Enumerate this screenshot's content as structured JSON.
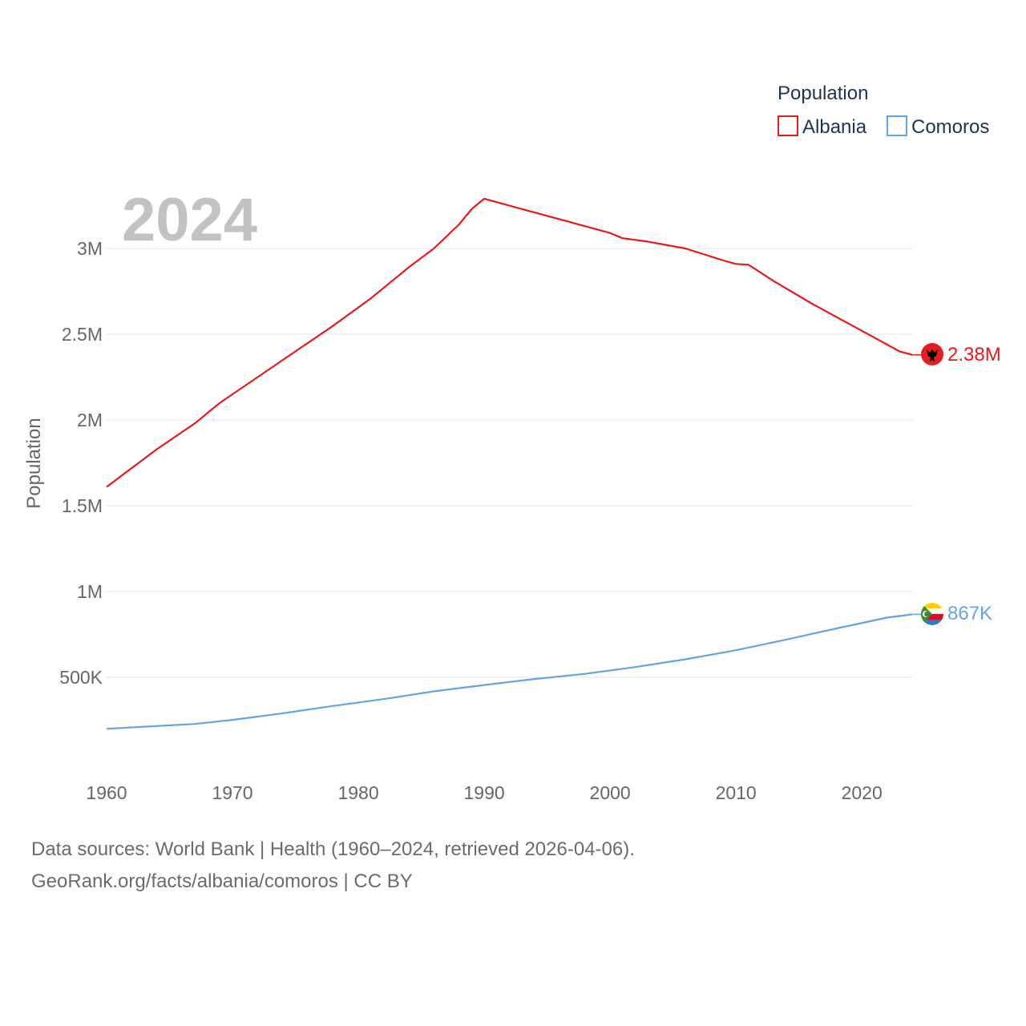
{
  "chart_data": {
    "type": "line",
    "title": "",
    "year_label": "2024",
    "legend_title": "Population",
    "ylabel": "Population",
    "xlabel": "",
    "xlim": [
      1960,
      2024
    ],
    "ylim": [
      200000,
      3300000
    ],
    "x_ticks": [
      "1960",
      "1970",
      "1980",
      "1990",
      "2000",
      "2010",
      "2020"
    ],
    "y_ticks": [
      {
        "value": 500000,
        "label": "500K"
      },
      {
        "value": 1000000,
        "label": "1M"
      },
      {
        "value": 1500000,
        "label": "1.5M"
      },
      {
        "value": 2000000,
        "label": "2M"
      },
      {
        "value": 2500000,
        "label": "2.5M"
      },
      {
        "value": 3000000,
        "label": "3M"
      }
    ],
    "series": [
      {
        "name": "Albania",
        "color": "#e8191b",
        "end_label": "2.38M",
        "flag_icon": "albania-flag-icon",
        "points": [
          [
            1960,
            1610000
          ],
          [
            1962,
            1720000
          ],
          [
            1964,
            1830000
          ],
          [
            1967,
            1980000
          ],
          [
            1969,
            2100000
          ],
          [
            1972,
            2250000
          ],
          [
            1975,
            2400000
          ],
          [
            1978,
            2550000
          ],
          [
            1981,
            2710000
          ],
          [
            1984,
            2890000
          ],
          [
            1986,
            3000000
          ],
          [
            1988,
            3140000
          ],
          [
            1989,
            3230000
          ],
          [
            1990,
            3290000
          ],
          [
            1993,
            3230000
          ],
          [
            1996,
            3170000
          ],
          [
            2000,
            3090000
          ],
          [
            2001,
            3060000
          ],
          [
            2003,
            3040000
          ],
          [
            2006,
            3000000
          ],
          [
            2009,
            2930000
          ],
          [
            2010,
            2910000
          ],
          [
            2011,
            2905000
          ],
          [
            2013,
            2810000
          ],
          [
            2016,
            2680000
          ],
          [
            2020,
            2520000
          ],
          [
            2023,
            2400000
          ],
          [
            2024,
            2380000
          ]
        ]
      },
      {
        "name": "Comoros",
        "color": "#63a4e6",
        "end_label": "867K",
        "flag_icon": "comoros-flag-icon",
        "points": [
          [
            1960,
            200000
          ],
          [
            1963,
            212000
          ],
          [
            1967,
            228000
          ],
          [
            1970,
            252000
          ],
          [
            1974,
            290000
          ],
          [
            1978,
            333000
          ],
          [
            1982,
            373000
          ],
          [
            1986,
            418000
          ],
          [
            1990,
            455000
          ],
          [
            1994,
            490000
          ],
          [
            1998,
            520000
          ],
          [
            2002,
            560000
          ],
          [
            2006,
            605000
          ],
          [
            2010,
            658000
          ],
          [
            2014,
            720000
          ],
          [
            2018,
            785000
          ],
          [
            2022,
            848000
          ],
          [
            2024,
            867000
          ]
        ]
      }
    ]
  },
  "footer": {
    "line1": "Data sources: World Bank | Health (1960–2024, retrieved 2026-04-06).",
    "line2": "GeoRank.org/facts/albania/comoros | CC BY"
  }
}
